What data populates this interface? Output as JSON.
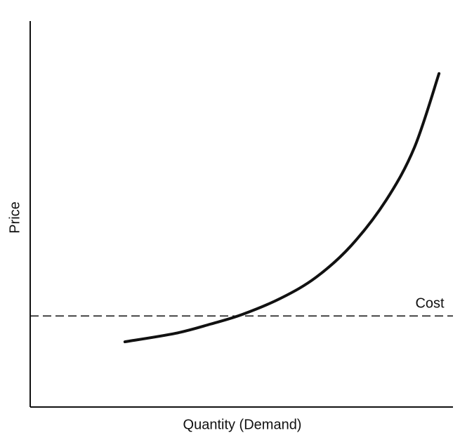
{
  "chart_data": {
    "type": "line",
    "x_label": "Quantity (Demand)",
    "y_label": "Price",
    "x": [
      22.4,
      34.4,
      42.7,
      50.2,
      59.3,
      67.6,
      75.9,
      84.2,
      90.9,
      96.7
    ],
    "series": [
      {
        "color": "#111111",
        "values": [
          16.9,
          19.1,
          21.5,
          24.0,
          28.2,
          33.6,
          41.8,
          53.6,
          67.3,
          86.4
        ]
      }
    ],
    "cost": {
      "label": "Cost",
      "value": 23.6
    },
    "xlim": [
      0,
      100
    ],
    "ylim": [
      0,
      100
    ]
  }
}
